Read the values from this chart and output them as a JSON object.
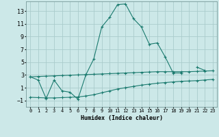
{
  "title": "",
  "xlabel": "Humidex (Indice chaleur)",
  "ylabel": "",
  "background_color": "#cce8e8",
  "grid_color": "#aacccc",
  "line_color": "#1a7a6e",
  "xlim": [
    -0.5,
    23.5
  ],
  "ylim": [
    -2.0,
    14.5
  ],
  "xticks": [
    0,
    1,
    2,
    3,
    4,
    5,
    6,
    7,
    8,
    9,
    10,
    11,
    12,
    13,
    14,
    15,
    16,
    17,
    18,
    19,
    20,
    21,
    22,
    23
  ],
  "yticks": [
    -1,
    1,
    3,
    5,
    7,
    9,
    11,
    13
  ],
  "line1_x": [
    0,
    1,
    2,
    3,
    4,
    5,
    6,
    7,
    8,
    9,
    10,
    11,
    12,
    13,
    14,
    15,
    16,
    17,
    18,
    19,
    20,
    21,
    22
  ],
  "line1_y": [
    2.7,
    2.2,
    -0.7,
    2.2,
    0.5,
    0.3,
    -0.8,
    3.0,
    5.5,
    10.5,
    12.0,
    14.0,
    14.1,
    11.8,
    10.5,
    7.8,
    8.0,
    5.8,
    3.3,
    3.3,
    null,
    4.2,
    3.7
  ],
  "line2_x": [
    0,
    1,
    2,
    3,
    4,
    5,
    6,
    7,
    8,
    9,
    10,
    11,
    12,
    13,
    14,
    15,
    16,
    17,
    18,
    19,
    20,
    21,
    22,
    23
  ],
  "line2_y": [
    2.7,
    2.75,
    2.8,
    2.85,
    2.9,
    2.95,
    3.0,
    3.05,
    3.1,
    3.15,
    3.2,
    3.25,
    3.3,
    3.35,
    3.4,
    3.45,
    3.5,
    3.5,
    3.5,
    3.5,
    3.5,
    3.55,
    3.6,
    3.65
  ],
  "line3_x": [
    0,
    1,
    2,
    3,
    4,
    5,
    6,
    7,
    8,
    9,
    10,
    11,
    12,
    13,
    14,
    15,
    16,
    17,
    18,
    19,
    20,
    21,
    22,
    23
  ],
  "line3_y": [
    -0.5,
    -0.55,
    -0.6,
    -0.6,
    -0.55,
    -0.5,
    -0.45,
    -0.3,
    -0.1,
    0.2,
    0.5,
    0.8,
    1.0,
    1.2,
    1.4,
    1.55,
    1.7,
    1.8,
    1.9,
    2.0,
    2.05,
    2.1,
    2.2,
    2.3
  ]
}
